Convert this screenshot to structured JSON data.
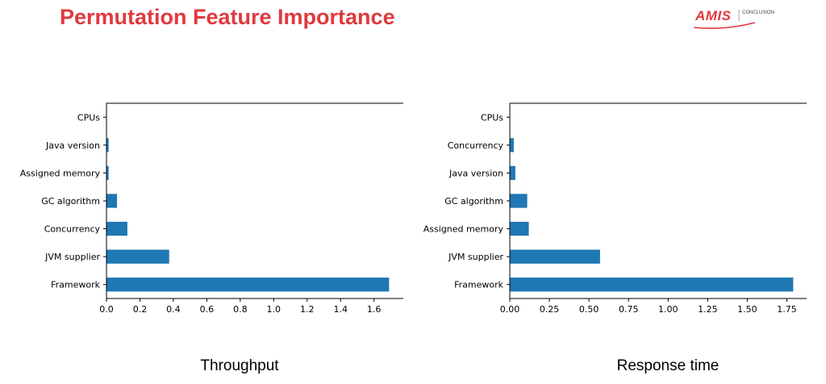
{
  "slide": {
    "title": "Permutation Feature Importance",
    "title_color": "#e0393e",
    "logo": {
      "brand": "AMIS",
      "sub": "CONCLUSION",
      "color": "#e0393e"
    }
  },
  "chart_data": [
    {
      "type": "bar",
      "orientation": "horizontal",
      "caption": "Throughput",
      "categories": [
        "CPUs",
        "Java version",
        "Assigned memory",
        "GC algorithm",
        "Concurrency",
        "JVM supplier",
        "Framework"
      ],
      "values": [
        0.0,
        0.013,
        0.013,
        0.063,
        0.125,
        0.375,
        1.69
      ],
      "xlim": [
        0,
        1.78
      ],
      "xticks": [
        0,
        0.2,
        0.4,
        0.6,
        0.8,
        1.0,
        1.2,
        1.4,
        1.6
      ],
      "xtick_labels": [
        "0.0",
        "0.2",
        "0.4",
        "0.6",
        "0.8",
        "1.0",
        "1.2",
        "1.4",
        "1.6"
      ],
      "color": "#1f77b4",
      "grid": false,
      "title": "",
      "xlabel": "",
      "ylabel": ""
    },
    {
      "type": "bar",
      "orientation": "horizontal",
      "caption": "Response time",
      "categories": [
        "CPUs",
        "Concurrency",
        "Java version",
        "GC algorithm",
        "Assigned memory",
        "JVM supplier",
        "Framework"
      ],
      "values": [
        0.0,
        0.025,
        0.035,
        0.11,
        0.12,
        0.57,
        1.79
      ],
      "xlim": [
        0,
        1.88
      ],
      "xticks": [
        0,
        0.25,
        0.5,
        0.75,
        1.0,
        1.25,
        1.5,
        1.75
      ],
      "xtick_labels": [
        "0.00",
        "0.25",
        "0.50",
        "0.75",
        "1.00",
        "1.25",
        "1.50",
        "1.75"
      ],
      "color": "#1f77b4",
      "grid": false,
      "title": "",
      "xlabel": "",
      "ylabel": ""
    }
  ]
}
